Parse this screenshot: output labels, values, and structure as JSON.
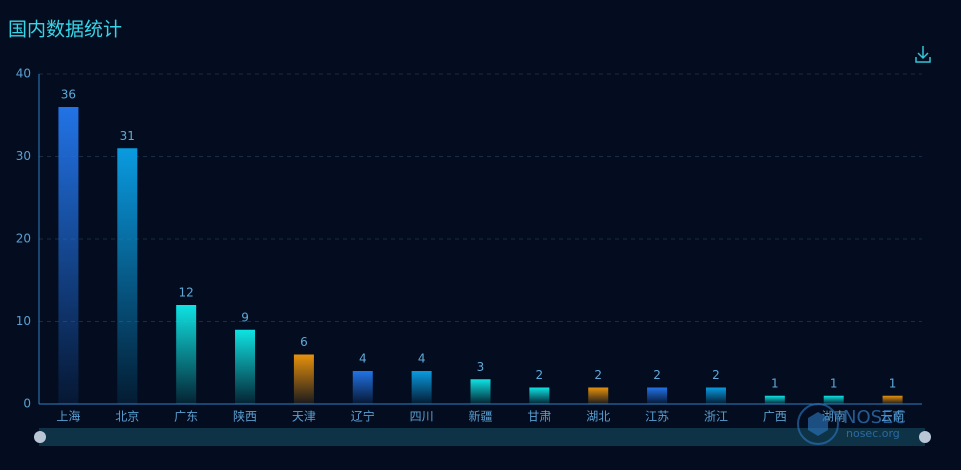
{
  "chart_data": {
    "type": "bar",
    "title": "国内数据统计",
    "categories": [
      "上海",
      "北京",
      "广东",
      "陕西",
      "天津",
      "辽宁",
      "四川",
      "新疆",
      "甘肃",
      "湖北",
      "江苏",
      "浙江",
      "广西",
      "湖南",
      "云南"
    ],
    "values": [
      36,
      31,
      12,
      9,
      6,
      4,
      4,
      3,
      2,
      2,
      2,
      2,
      1,
      1,
      1
    ],
    "colors": [
      "#2273e6",
      "#0a9be0",
      "#0fe3e3",
      "#0fe3e3",
      "#e8910c",
      "#2273e6",
      "#0a9be0",
      "#0fe3e3",
      "#0fe3e3",
      "#e8910c",
      "#2273e6",
      "#0a9be0",
      "#0fe3e3",
      "#0fe3e3",
      "#e8910c"
    ],
    "ylim": [
      0,
      40
    ],
    "yticks": [
      0,
      10,
      20,
      30,
      40
    ],
    "grid": true,
    "watermark": {
      "name": "NOSEC",
      "url": "nosec.org"
    }
  }
}
